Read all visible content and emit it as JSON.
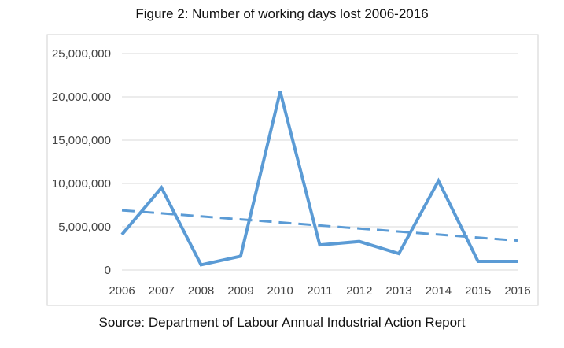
{
  "title": "Figure 2: Number of working days lost 2006-2016",
  "source": "Source: Department of Labour Annual Industrial Action Report",
  "chart_data": {
    "type": "line",
    "categories": [
      "2006",
      "2007",
      "2008",
      "2009",
      "2010",
      "2011",
      "2012",
      "2013",
      "2014",
      "2015",
      "2016"
    ],
    "series": [
      {
        "values": [
          4100000,
          9500000,
          600000,
          1600000,
          20600000,
          2900000,
          3300000,
          1900000,
          10300000,
          1000000,
          1000000
        ],
        "color": "#5b9bd5",
        "style": "solid"
      },
      {
        "values": [
          6900000,
          6550000,
          6200000,
          5850000,
          5500000,
          5150000,
          4800000,
          4450000,
          4100000,
          3750000,
          3400000
        ],
        "color": "#5b9bd5",
        "style": "dashed",
        "kind": "linear trendline"
      }
    ],
    "yticks": [
      "0",
      "5,000,000",
      "10,000,000",
      "15,000,000",
      "20,000,000",
      "25,000,000"
    ],
    "ylim": [
      0,
      25000000
    ],
    "grid": true,
    "legend": "none"
  }
}
